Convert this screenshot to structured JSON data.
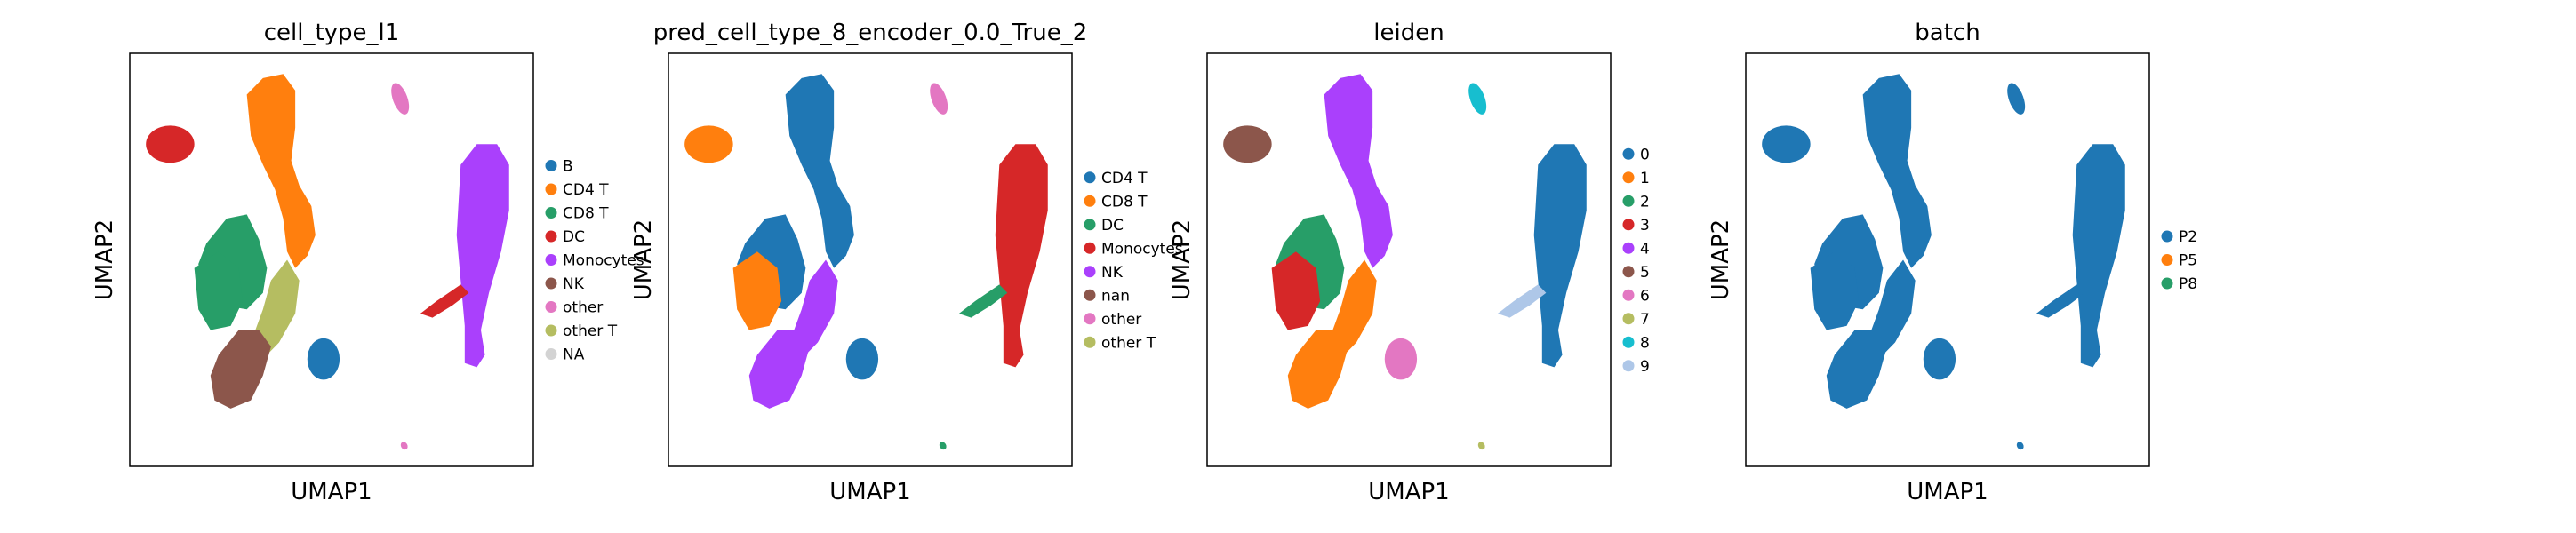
{
  "chart_data": [
    {
      "type": "scatter",
      "title": "cell_type_l1",
      "xlabel": "UMAP1",
      "ylabel": "UMAP2",
      "grid": false,
      "legend_position": "right",
      "legend": [
        {
          "label": "B",
          "color": "#1f77b4"
        },
        {
          "label": "CD4 T",
          "color": "#ff7f0e"
        },
        {
          "label": "CD8 T",
          "color": "#279e68"
        },
        {
          "label": "DC",
          "color": "#d62728"
        },
        {
          "label": "Monocytes",
          "color": "#aa40fc"
        },
        {
          "label": "NK",
          "color": "#8c564b"
        },
        {
          "label": "other",
          "color": "#e377c2"
        },
        {
          "label": "other T",
          "color": "#b5bd61"
        },
        {
          "label": "NA",
          "color": "#d3d3d3"
        }
      ],
      "clusters": [
        "DC",
        "CD8 T",
        "CD4 T",
        "CD8 T",
        "other T",
        "NK",
        "B",
        "other",
        "Monocytes",
        "DC",
        "other"
      ]
    },
    {
      "type": "scatter",
      "title": "pred_cell_type_8_encoder_0.0_True_2",
      "xlabel": "UMAP1",
      "ylabel": "UMAP2",
      "grid": false,
      "legend_position": "right",
      "legend": [
        {
          "label": "CD4 T",
          "color": "#1f77b4"
        },
        {
          "label": "CD8 T",
          "color": "#ff7f0e"
        },
        {
          "label": "DC",
          "color": "#279e68"
        },
        {
          "label": "Monocytes",
          "color": "#d62728"
        },
        {
          "label": "NK",
          "color": "#aa40fc"
        },
        {
          "label": "nan",
          "color": "#8c564b"
        },
        {
          "label": "other",
          "color": "#e377c2"
        },
        {
          "label": "other T",
          "color": "#b5bd61"
        }
      ],
      "clusters": [
        "CD8 T",
        "CD4 T",
        "CD4 T",
        "CD8 T",
        "NK",
        "NK",
        "CD4 T",
        "other",
        "Monocytes",
        "DC",
        "DC"
      ]
    },
    {
      "type": "scatter",
      "title": "leiden",
      "xlabel": "UMAP1",
      "ylabel": "UMAP2",
      "grid": false,
      "legend_position": "right",
      "legend": [
        {
          "label": "0",
          "color": "#1f77b4"
        },
        {
          "label": "1",
          "color": "#ff7f0e"
        },
        {
          "label": "2",
          "color": "#279e68"
        },
        {
          "label": "3",
          "color": "#d62728"
        },
        {
          "label": "4",
          "color": "#aa40fc"
        },
        {
          "label": "5",
          "color": "#8c564b"
        },
        {
          "label": "6",
          "color": "#e377c2"
        },
        {
          "label": "7",
          "color": "#b5bd61"
        },
        {
          "label": "8",
          "color": "#17becf"
        },
        {
          "label": "9",
          "color": "#aec7e8"
        }
      ],
      "clusters": [
        "5",
        "2",
        "4",
        "3",
        "1",
        "1",
        "6",
        "8",
        "0",
        "9",
        "7"
      ]
    },
    {
      "type": "scatter",
      "title": "batch",
      "xlabel": "UMAP1",
      "ylabel": "UMAP2",
      "grid": false,
      "legend_position": "right",
      "legend": [
        {
          "label": "P2",
          "color": "#1f77b4"
        },
        {
          "label": "P5",
          "color": "#ff7f0e"
        },
        {
          "label": "P8",
          "color": "#279e68"
        }
      ],
      "clusters": [
        "P2",
        "P2",
        "P2",
        "P2",
        "P2",
        "P2",
        "P2",
        "P2",
        "P2",
        "P2",
        "P2"
      ]
    }
  ]
}
